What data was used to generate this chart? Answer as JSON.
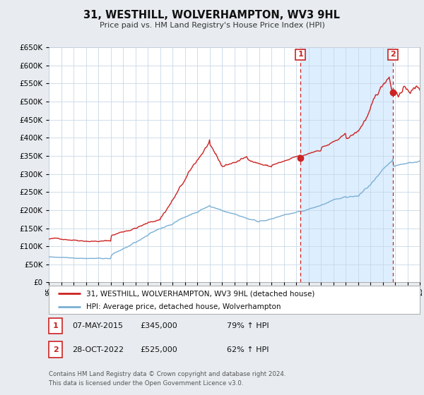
{
  "title": "31, WESTHILL, WOLVERHAMPTON, WV3 9HL",
  "subtitle": "Price paid vs. HM Land Registry's House Price Index (HPI)",
  "xlim": [
    1995,
    2025
  ],
  "ylim": [
    0,
    650000
  ],
  "yticks": [
    0,
    50000,
    100000,
    150000,
    200000,
    250000,
    300000,
    350000,
    400000,
    450000,
    500000,
    550000,
    600000,
    650000
  ],
  "red_color": "#cc2222",
  "blue_color": "#7ab0d4",
  "shade_color": "#ddeeff",
  "marker1_date": 2015.35,
  "marker1_value": 345000,
  "marker2_date": 2022.82,
  "marker2_value": 525000,
  "vline1_x": 2015.35,
  "vline2_x": 2022.82,
  "legend_label_red": "31, WESTHILL, WOLVERHAMPTON, WV3 9HL (detached house)",
  "legend_label_blue": "HPI: Average price, detached house, Wolverhampton",
  "table_row1": [
    "1",
    "07-MAY-2015",
    "£345,000",
    "79% ↑ HPI"
  ],
  "table_row2": [
    "2",
    "28-OCT-2022",
    "£525,000",
    "62% ↑ HPI"
  ],
  "footer_line1": "Contains HM Land Registry data © Crown copyright and database right 2024.",
  "footer_line2": "This data is licensed under the Open Government Licence v3.0.",
  "background_color": "#e8ecf0",
  "plot_bg_color": "#ffffff",
  "grid_color": "#c8d8e8"
}
